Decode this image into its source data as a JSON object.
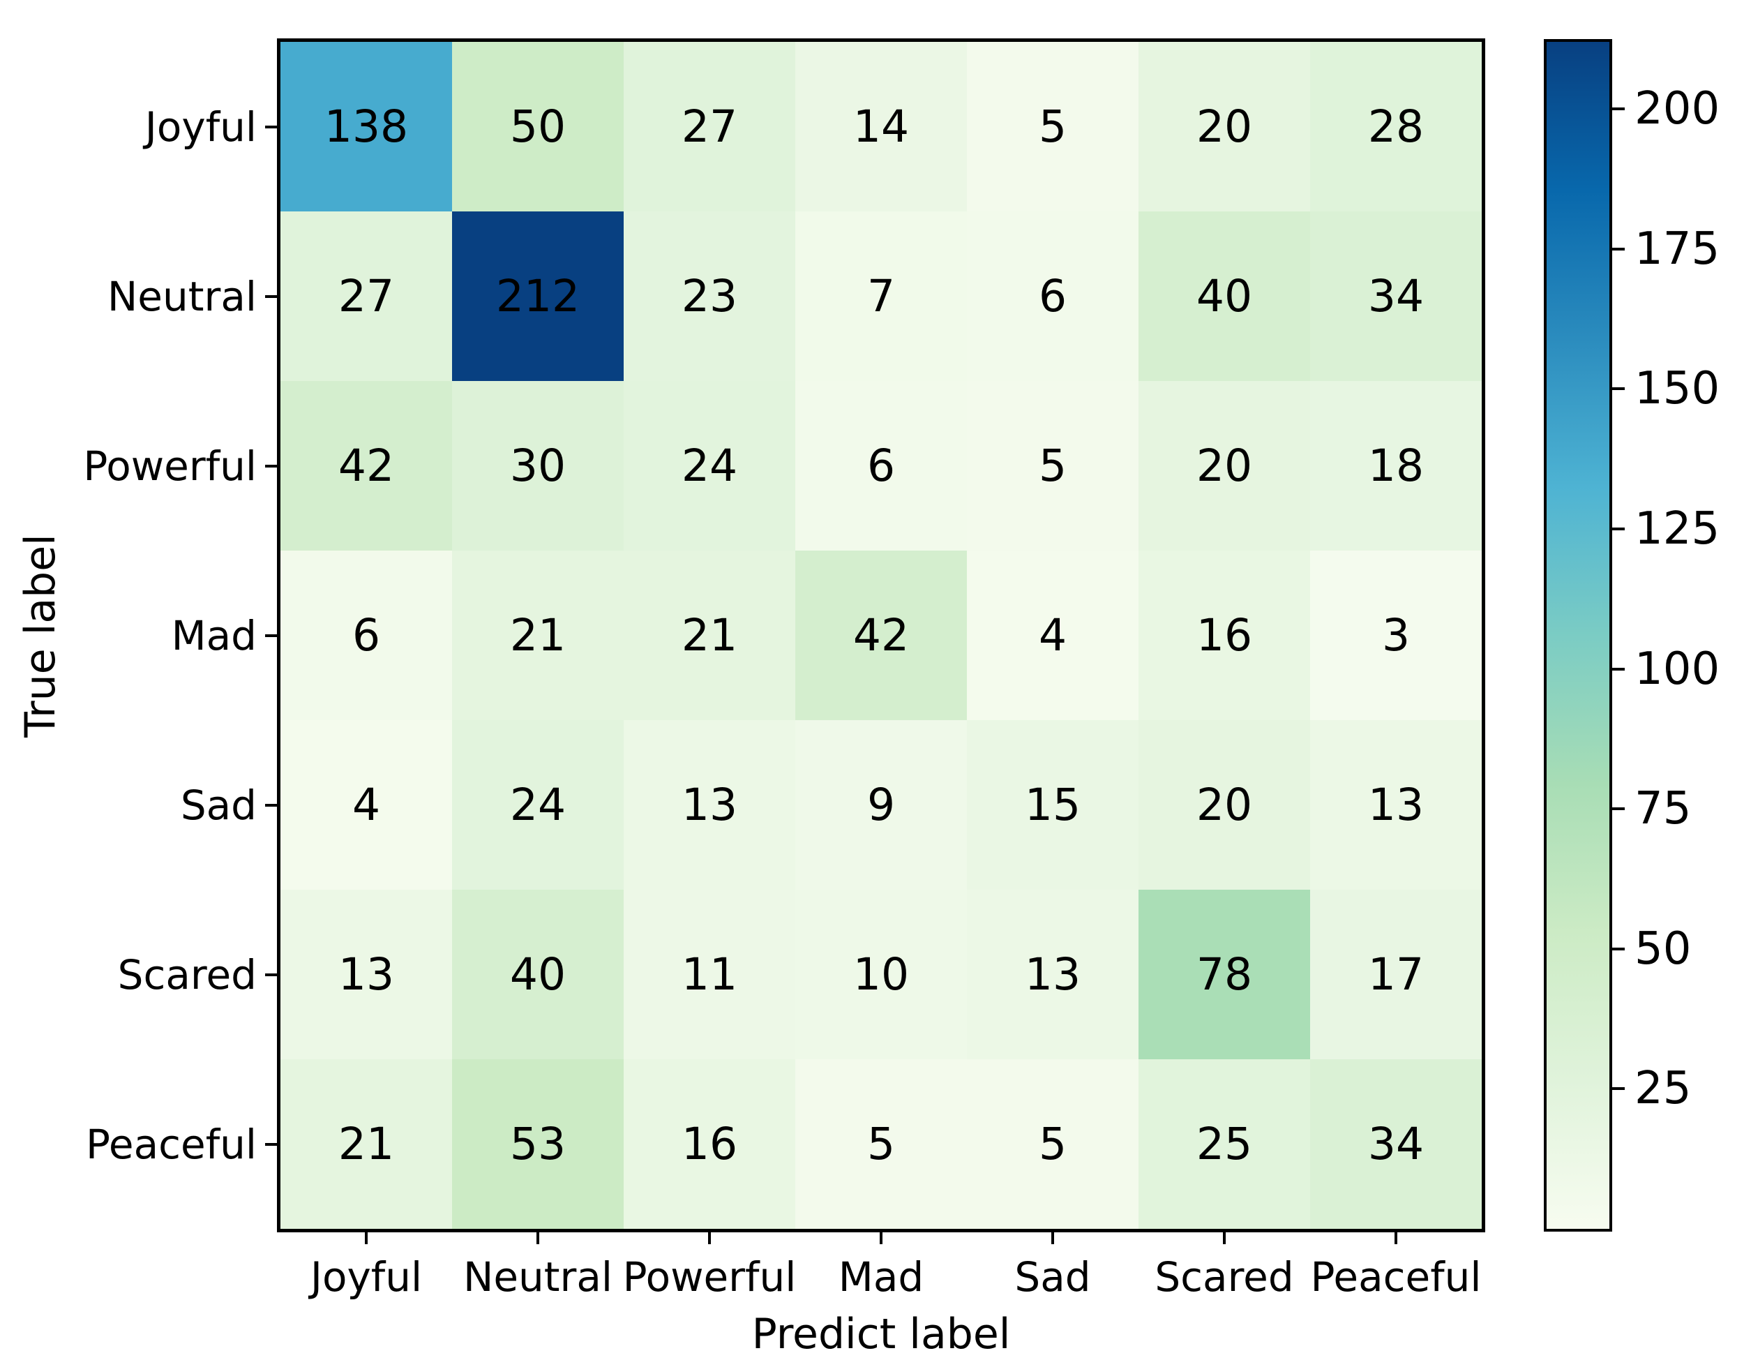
{
  "figure": {
    "background": "#ffffff",
    "frame_color": "#000000"
  },
  "chart_data": {
    "type": "heatmap",
    "title": "",
    "xlabel": "Predict label",
    "ylabel": "True label",
    "x_categories": [
      "Joyful",
      "Neutral",
      "Powerful",
      "Mad",
      "Sad",
      "Scared",
      "Peaceful"
    ],
    "y_categories": [
      "Joyful",
      "Neutral",
      "Powerful",
      "Mad",
      "Sad",
      "Scared",
      "Peaceful"
    ],
    "matrix": [
      [
        138,
        50,
        27,
        14,
        5,
        20,
        28
      ],
      [
        27,
        212,
        23,
        7,
        6,
        40,
        34
      ],
      [
        42,
        30,
        24,
        6,
        5,
        20,
        18
      ],
      [
        6,
        21,
        21,
        42,
        4,
        16,
        3
      ],
      [
        4,
        24,
        13,
        9,
        15,
        20,
        13
      ],
      [
        13,
        40,
        11,
        10,
        13,
        78,
        17
      ],
      [
        21,
        53,
        16,
        5,
        5,
        25,
        34
      ]
    ],
    "annotation_color": "#000000",
    "vmin": 0,
    "vmax": 212,
    "colormap_name": "GnBu",
    "colormap_stops": [
      "#f7fcf0",
      "#e0f3db",
      "#ccebc5",
      "#a8ddb5",
      "#7bccc4",
      "#4eb3d3",
      "#2b8cbe",
      "#0868ac",
      "#084081"
    ],
    "colorbar_ticks": [
      25,
      50,
      75,
      100,
      125,
      150,
      175,
      200
    ],
    "colorbar_position": "right",
    "grid": false
  }
}
